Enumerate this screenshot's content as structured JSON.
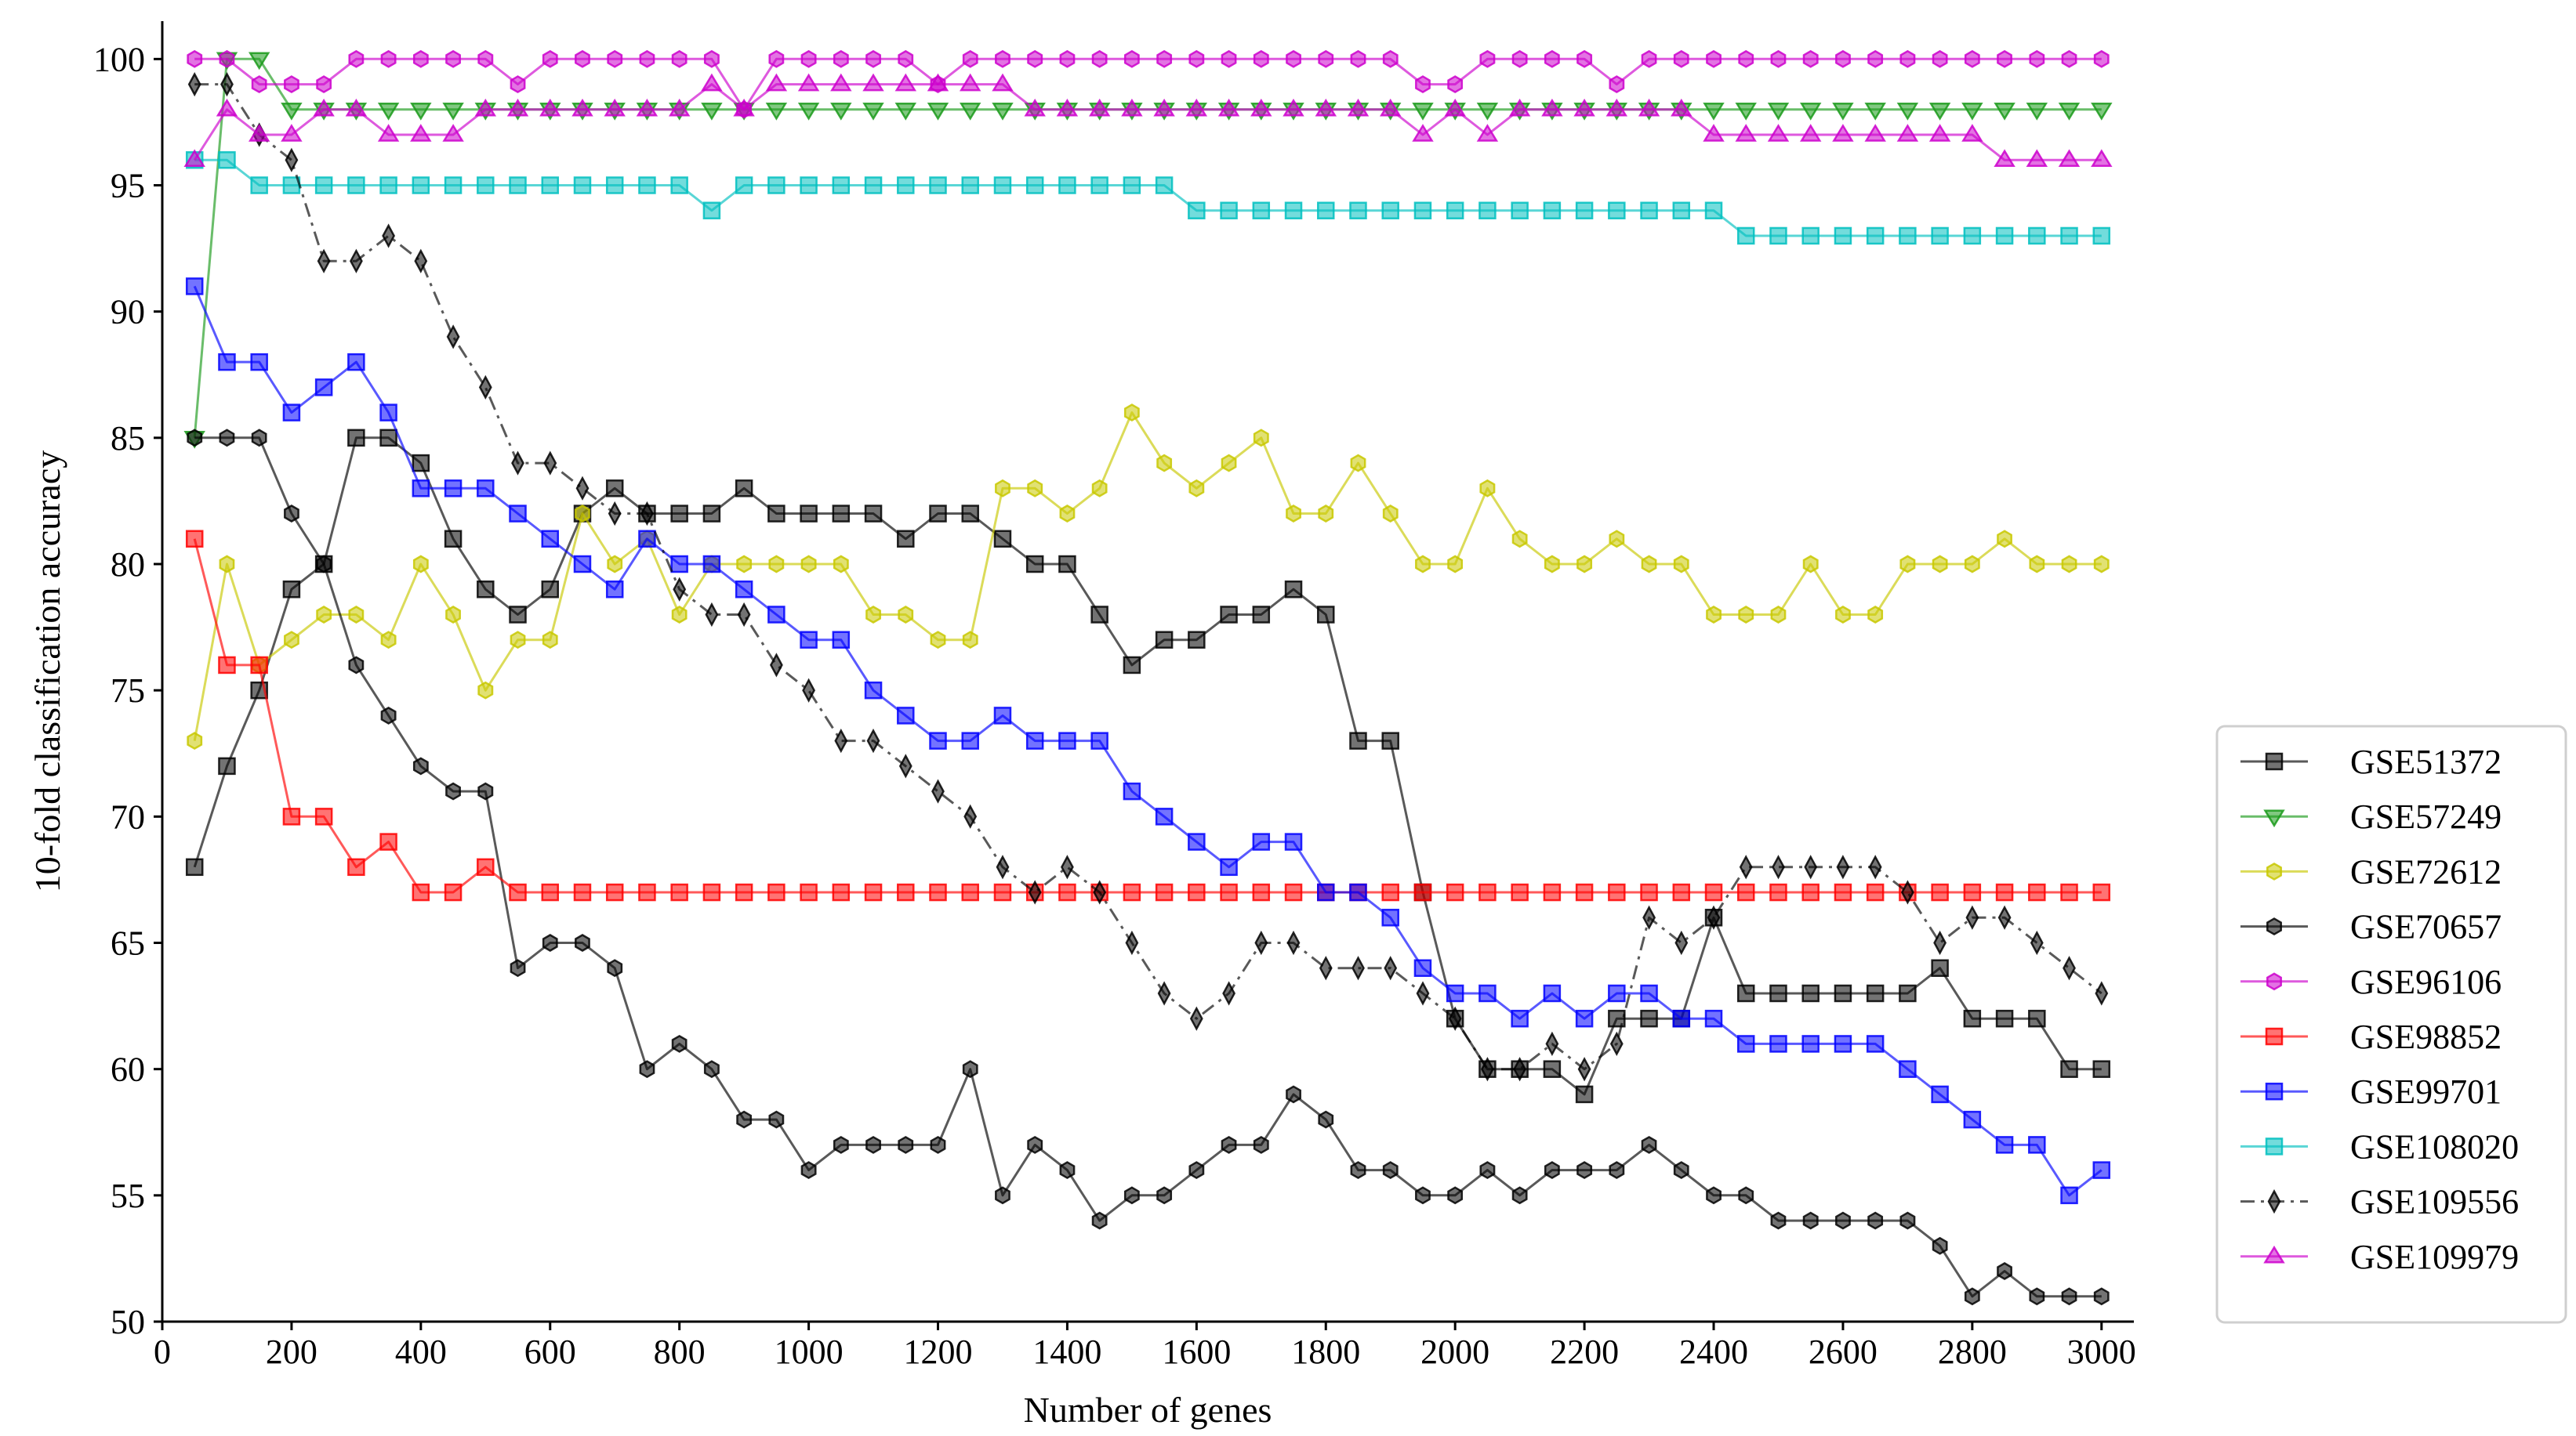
{
  "chart_data": {
    "type": "line",
    "title": "",
    "xlabel": "Number of genes",
    "ylabel": "10-fold classification accuracy",
    "xlim": [
      0,
      3050
    ],
    "ylim": [
      50,
      101.5
    ],
    "xticks": [
      0,
      200,
      400,
      600,
      800,
      1000,
      1200,
      1400,
      1600,
      1800,
      2000,
      2200,
      2400,
      2600,
      2800,
      3000
    ],
    "yticks": [
      50,
      55,
      60,
      65,
      70,
      75,
      80,
      85,
      90,
      95,
      100
    ],
    "grid": false,
    "legend_position": "lower-right outside",
    "x": [
      50,
      100,
      150,
      200,
      250,
      300,
      350,
      400,
      450,
      500,
      550,
      600,
      650,
      700,
      750,
      800,
      850,
      900,
      950,
      1000,
      1050,
      1100,
      1150,
      1200,
      1250,
      1300,
      1350,
      1400,
      1450,
      1500,
      1550,
      1600,
      1650,
      1700,
      1750,
      1800,
      1850,
      1900,
      1950,
      2000,
      2050,
      2100,
      2150,
      2200,
      2250,
      2300,
      2350,
      2400,
      2450,
      2500,
      2550,
      2600,
      2650,
      2700,
      2750,
      2800,
      2850,
      2900,
      2950,
      3000
    ],
    "series": [
      {
        "name": "GSE51372",
        "color": "#000000",
        "marker": "square",
        "dash": "solid",
        "values": [
          68,
          72,
          75,
          79,
          80,
          85,
          85,
          84,
          81,
          79,
          78,
          79,
          82,
          83,
          82,
          82,
          82,
          83,
          82,
          82,
          82,
          82,
          81,
          82,
          82,
          81,
          80,
          80,
          78,
          76,
          77,
          77,
          78,
          78,
          79,
          78,
          73,
          73,
          67,
          62,
          60,
          60,
          60,
          59,
          62,
          62,
          62,
          66,
          63,
          63,
          63,
          63,
          63,
          63,
          64,
          62,
          62,
          62,
          60,
          60
        ]
      },
      {
        "name": "GSE57249",
        "color": "#1a9a1a",
        "marker": "triangle-down",
        "dash": "solid",
        "values": [
          85,
          100,
          100,
          98,
          98,
          98,
          98,
          98,
          98,
          98,
          98,
          98,
          98,
          98,
          98,
          98,
          98,
          98,
          98,
          98,
          98,
          98,
          98,
          98,
          98,
          98,
          98,
          98,
          98,
          98,
          98,
          98,
          98,
          98,
          98,
          98,
          98,
          98,
          98,
          98,
          98,
          98,
          98,
          98,
          98,
          98,
          98,
          98,
          98,
          98,
          98,
          98,
          98,
          98,
          98,
          98,
          98,
          98,
          98,
          98
        ]
      },
      {
        "name": "GSE72612",
        "color": "#c8c800",
        "marker": "hexagon",
        "dash": "solid",
        "values": [
          73,
          80,
          76,
          77,
          78,
          78,
          77,
          80,
          78,
          75,
          77,
          77,
          82,
          80,
          81,
          78,
          80,
          80,
          80,
          80,
          80,
          78,
          78,
          77,
          77,
          83,
          83,
          82,
          83,
          86,
          84,
          83,
          84,
          85,
          82,
          82,
          84,
          82,
          80,
          80,
          83,
          81,
          80,
          80,
          81,
          80,
          80,
          78,
          78,
          78,
          80,
          78,
          78,
          80,
          80,
          80,
          81,
          80,
          80,
          80
        ]
      },
      {
        "name": "GSE70657",
        "color": "#000000",
        "marker": "hexagon",
        "dash": "solid",
        "values": [
          85,
          85,
          85,
          82,
          80,
          76,
          74,
          72,
          71,
          71,
          64,
          65,
          65,
          64,
          60,
          61,
          60,
          58,
          58,
          56,
          57,
          57,
          57,
          57,
          60,
          55,
          57,
          56,
          54,
          55,
          55,
          56,
          57,
          57,
          59,
          58,
          56,
          56,
          55,
          55,
          56,
          55,
          56,
          56,
          56,
          57,
          56,
          55,
          55,
          54,
          54,
          54,
          54,
          54,
          53,
          51,
          52,
          51,
          51,
          51
        ]
      },
      {
        "name": "GSE96106",
        "color": "#cc00cc",
        "marker": "hexagon",
        "dash": "solid",
        "values": [
          100,
          100,
          99,
          99,
          99,
          100,
          100,
          100,
          100,
          100,
          99,
          100,
          100,
          100,
          100,
          100,
          100,
          98,
          100,
          100,
          100,
          100,
          100,
          99,
          100,
          100,
          100,
          100,
          100,
          100,
          100,
          100,
          100,
          100,
          100,
          100,
          100,
          100,
          99,
          99,
          100,
          100,
          100,
          100,
          99,
          100,
          100,
          100,
          100,
          100,
          100,
          100,
          100,
          100,
          100,
          100,
          100,
          100,
          100,
          100
        ]
      },
      {
        "name": "GSE98852",
        "color": "#ff0000",
        "marker": "square",
        "dash": "solid",
        "values": [
          81,
          76,
          76,
          70,
          70,
          68,
          69,
          67,
          67,
          68,
          67,
          67,
          67,
          67,
          67,
          67,
          67,
          67,
          67,
          67,
          67,
          67,
          67,
          67,
          67,
          67,
          67,
          67,
          67,
          67,
          67,
          67,
          67,
          67,
          67,
          67,
          67,
          67,
          67,
          67,
          67,
          67,
          67,
          67,
          67,
          67,
          67,
          67,
          67,
          67,
          67,
          67,
          67,
          67,
          67,
          67,
          67,
          67,
          67,
          67
        ]
      },
      {
        "name": "GSE99701",
        "color": "#0000ff",
        "marker": "square",
        "dash": "solid",
        "values": [
          91,
          88,
          88,
          86,
          87,
          88,
          86,
          83,
          83,
          83,
          82,
          81,
          80,
          79,
          81,
          80,
          80,
          79,
          78,
          77,
          77,
          75,
          74,
          73,
          73,
          74,
          73,
          73,
          73,
          71,
          70,
          69,
          68,
          69,
          69,
          67,
          67,
          66,
          64,
          63,
          63,
          62,
          63,
          62,
          63,
          63,
          62,
          62,
          61,
          61,
          61,
          61,
          61,
          60,
          59,
          58,
          57,
          57,
          55,
          56
        ]
      },
      {
        "name": "GSE108020",
        "color": "#00c0c0",
        "marker": "square",
        "dash": "solid",
        "values": [
          96,
          96,
          95,
          95,
          95,
          95,
          95,
          95,
          95,
          95,
          95,
          95,
          95,
          95,
          95,
          95,
          94,
          95,
          95,
          95,
          95,
          95,
          95,
          95,
          95,
          95,
          95,
          95,
          95,
          95,
          95,
          94,
          94,
          94,
          94,
          94,
          94,
          94,
          94,
          94,
          94,
          94,
          94,
          94,
          94,
          94,
          94,
          94,
          93,
          93,
          93,
          93,
          93,
          93,
          93,
          93,
          93,
          93,
          93,
          93
        ]
      },
      {
        "name": "GSE109556",
        "color": "#000000",
        "marker": "thin-diamond",
        "dash": "dashdot",
        "values": [
          99,
          99,
          97,
          96,
          92,
          92,
          93,
          92,
          89,
          87,
          84,
          84,
          83,
          82,
          82,
          79,
          78,
          78,
          76,
          75,
          73,
          73,
          72,
          71,
          70,
          68,
          67,
          68,
          67,
          65,
          63,
          62,
          63,
          65,
          65,
          64,
          64,
          64,
          63,
          62,
          60,
          60,
          61,
          60,
          61,
          66,
          65,
          66,
          68,
          68,
          68,
          68,
          68,
          67,
          65,
          66,
          66,
          65,
          64,
          63
        ]
      },
      {
        "name": "GSE109979",
        "color": "#cc00cc",
        "marker": "triangle-up",
        "dash": "solid",
        "values": [
          96,
          98,
          97,
          97,
          98,
          98,
          97,
          97,
          97,
          98,
          98,
          98,
          98,
          98,
          98,
          98,
          99,
          98,
          99,
          99,
          99,
          99,
          99,
          99,
          99,
          99,
          98,
          98,
          98,
          98,
          98,
          98,
          98,
          98,
          98,
          98,
          98,
          98,
          97,
          98,
          97,
          98,
          98,
          98,
          98,
          98,
          98,
          97,
          97,
          97,
          97,
          97,
          97,
          97,
          97,
          97,
          96,
          96,
          96,
          96
        ]
      }
    ]
  }
}
